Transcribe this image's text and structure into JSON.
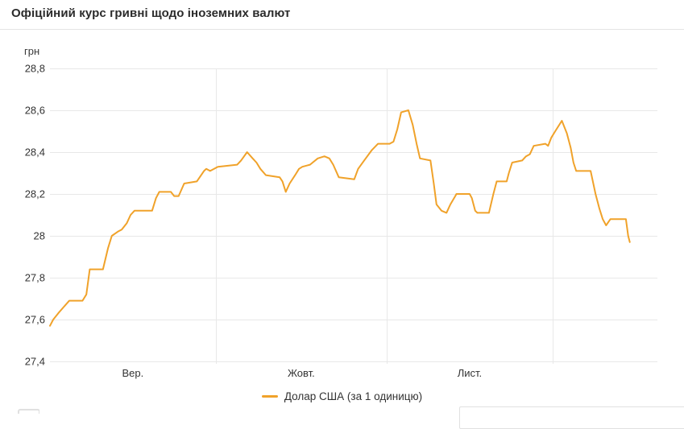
{
  "header": {
    "title": "Офіційний курс гривні щодо іноземних валют"
  },
  "legend": {
    "label": "Долар США (за 1 одиницю)"
  },
  "colors": {
    "line": "#F0A22A",
    "grid": "#e8e8e8",
    "text": "#333333"
  },
  "chart_data": {
    "type": "line",
    "title": "Офіційний курс гривні щодо іноземних валют",
    "unit_label": "грн",
    "grid": true,
    "legend_position": "bottom",
    "y_axis": {
      "min": 27.4,
      "max": 28.8,
      "step": 0.2,
      "tick_labels": [
        "28,8",
        "28,6",
        "28,4",
        "28,2",
        "28",
        "27,8",
        "27,6",
        "27,4"
      ]
    },
    "x_axis": {
      "domain_days": [
        0,
        110
      ],
      "month_labels": [
        {
          "text": "Вер.",
          "day": 15
        },
        {
          "text": "Жовт.",
          "day": 45.5
        },
        {
          "text": "Лист.",
          "day": 76
        }
      ],
      "month_gridline_days": [
        30,
        61,
        91
      ]
    },
    "series": [
      {
        "name": "Долар США (за 1 одиницю)",
        "color": "#F0A22A",
        "points": [
          [
            0,
            27.57
          ],
          [
            0.6,
            27.6
          ],
          [
            1.5,
            27.63
          ],
          [
            2.5,
            27.66
          ],
          [
            3.5,
            27.69
          ],
          [
            5.9,
            27.69
          ],
          [
            6.6,
            27.72
          ],
          [
            7,
            27.8
          ],
          [
            7.2,
            27.84
          ],
          [
            9.6,
            27.84
          ],
          [
            10.5,
            27.94
          ],
          [
            11.2,
            28
          ],
          [
            12.3,
            28.02
          ],
          [
            13,
            28.03
          ],
          [
            13.9,
            28.06
          ],
          [
            14.6,
            28.1
          ],
          [
            15.3,
            28.12
          ],
          [
            18.5,
            28.12
          ],
          [
            19.2,
            28.18
          ],
          [
            19.8,
            28.21
          ],
          [
            21.9,
            28.21
          ],
          [
            22.5,
            28.19
          ],
          [
            23.3,
            28.19
          ],
          [
            24.3,
            28.25
          ],
          [
            26.6,
            28.26
          ],
          [
            27.9,
            28.31
          ],
          [
            28.3,
            28.32
          ],
          [
            29,
            28.31
          ],
          [
            30.4,
            28.33
          ],
          [
            33.9,
            28.34
          ],
          [
            34.6,
            28.36
          ],
          [
            35.7,
            28.4
          ],
          [
            36.7,
            28.37
          ],
          [
            37.4,
            28.35
          ],
          [
            38.1,
            28.32
          ],
          [
            39.1,
            28.29
          ],
          [
            41.6,
            28.28
          ],
          [
            42.1,
            28.26
          ],
          [
            42.7,
            28.21
          ],
          [
            43.4,
            28.25
          ],
          [
            44.4,
            28.29
          ],
          [
            45.1,
            28.32
          ],
          [
            45.7,
            28.33
          ],
          [
            47.1,
            28.34
          ],
          [
            48.5,
            28.37
          ],
          [
            49.7,
            28.38
          ],
          [
            50.6,
            28.37
          ],
          [
            51.3,
            28.34
          ],
          [
            52.3,
            28.28
          ],
          [
            55.1,
            28.27
          ],
          [
            55.8,
            28.32
          ],
          [
            56.9,
            28.36
          ],
          [
            58.3,
            28.41
          ],
          [
            59.4,
            28.44
          ],
          [
            61.5,
            28.44
          ],
          [
            62.2,
            28.45
          ],
          [
            62.9,
            28.51
          ],
          [
            63.6,
            28.59
          ],
          [
            64.9,
            28.6
          ],
          [
            65.7,
            28.53
          ],
          [
            66.4,
            28.44
          ],
          [
            67,
            28.37
          ],
          [
            68.9,
            28.36
          ],
          [
            69.5,
            28.25
          ],
          [
            70,
            28.15
          ],
          [
            70.9,
            28.12
          ],
          [
            71.8,
            28.11
          ],
          [
            72.5,
            28.15
          ],
          [
            73.4,
            28.19
          ],
          [
            73.6,
            28.2
          ],
          [
            76,
            28.2
          ],
          [
            76.4,
            28.18
          ],
          [
            77,
            28.12
          ],
          [
            77.4,
            28.11
          ],
          [
            79.5,
            28.11
          ],
          [
            80.3,
            28.2
          ],
          [
            80.9,
            28.26
          ],
          [
            82.7,
            28.26
          ],
          [
            83.1,
            28.3
          ],
          [
            83.7,
            28.35
          ],
          [
            85.5,
            28.36
          ],
          [
            86.2,
            28.38
          ],
          [
            86.9,
            28.39
          ],
          [
            87.6,
            28.43
          ],
          [
            89.7,
            28.44
          ],
          [
            90.2,
            28.43
          ],
          [
            90.8,
            28.47
          ],
          [
            91.5,
            28.5
          ],
          [
            92.7,
            28.55
          ],
          [
            93.6,
            28.49
          ],
          [
            94.3,
            28.42
          ],
          [
            94.8,
            28.35
          ],
          [
            95.3,
            28.31
          ],
          [
            97.9,
            28.31
          ],
          [
            98.8,
            28.2
          ],
          [
            99.5,
            28.13
          ],
          [
            100.1,
            28.08
          ],
          [
            100.7,
            28.05
          ],
          [
            101.5,
            28.08
          ],
          [
            104.3,
            28.08
          ],
          [
            104.7,
            28
          ],
          [
            105,
            27.97
          ]
        ]
      }
    ]
  }
}
